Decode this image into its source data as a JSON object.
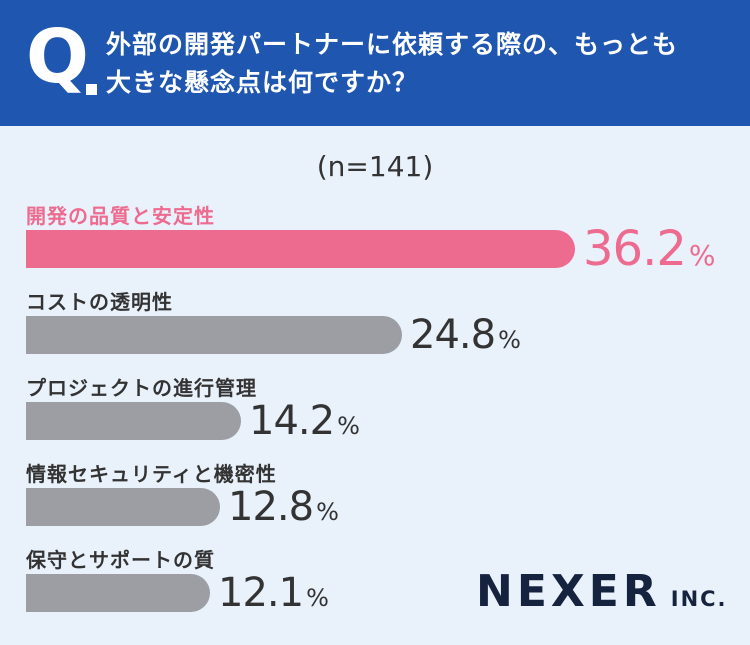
{
  "header": {
    "q_mark": "Q",
    "question_line1": "外部の開発パートナーに依頼する際の、もっとも",
    "question_line2": "大きな懸念点は何ですか？"
  },
  "chart_data": {
    "type": "bar",
    "orientation": "horizontal",
    "title": "外部の開発パートナーに依頼する際の、もっとも大きな懸念点は何ですか？",
    "sample_label": "(n=141)",
    "unit": "%",
    "categories": [
      "開発の品質と安定性",
      "コストの透明性",
      "プロジェクトの進行管理",
      "情報セキュリティと機密性",
      "保守とサポートの質"
    ],
    "values": [
      36.2,
      24.8,
      14.2,
      12.8,
      12.1
    ],
    "value_labels": [
      "36.2",
      "24.8",
      "14.2",
      "12.8",
      "12.1"
    ],
    "highlight_index": 0,
    "colors": {
      "highlight": "#ee6b90",
      "default": "#9c9ea3",
      "header": "#1f56b0",
      "background": "#e9f1fb"
    }
  },
  "logo": {
    "main": "NEXER",
    "suffix": "INC."
  }
}
